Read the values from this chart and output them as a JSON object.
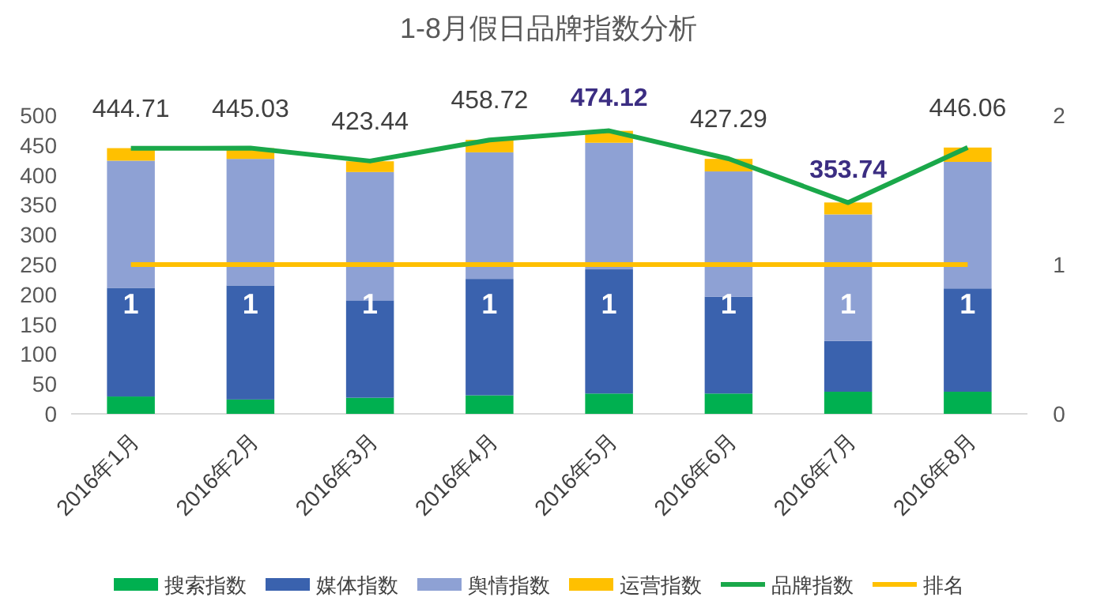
{
  "chart_data": {
    "type": "bar",
    "title": "1-8月假日品牌指数分析",
    "stacked": true,
    "categories": [
      "2016年1月",
      "2016年2月",
      "2016年3月",
      "2016年4月",
      "2016年5月",
      "2016年6月",
      "2016年7月",
      "2016年8月"
    ],
    "ylim": [
      0,
      500
    ],
    "yticks": [
      0,
      50,
      100,
      150,
      200,
      250,
      300,
      350,
      400,
      450,
      500
    ],
    "y2lim": [
      0,
      2
    ],
    "y2ticks": [
      0,
      1,
      2
    ],
    "series": [
      {
        "name": "搜索指数",
        "color": "#00b050",
        "values": [
          29,
          24,
          27,
          31,
          34,
          34,
          37,
          37
        ]
      },
      {
        "name": "媒体指数",
        "color": "#3a62ae",
        "values": [
          182,
          191,
          163,
          195,
          208,
          162,
          85,
          173
        ]
      },
      {
        "name": "舆情指数",
        "color": "#8ea1d4",
        "values": [
          213,
          212,
          215,
          212,
          212,
          210,
          212,
          212
        ]
      },
      {
        "name": "运营指数",
        "color": "#ffc000",
        "values": [
          21,
          18,
          18,
          21,
          20,
          21,
          20,
          24
        ]
      },
      {
        "name": "品牌指数",
        "type": "line",
        "color": "#1aa84a",
        "values": [
          444.71,
          445.03,
          423.44,
          458.72,
          474.12,
          427.29,
          353.74,
          446.06
        ],
        "value_labels": [
          "444.71",
          "445.03",
          "423.44",
          "458.72",
          "474.12",
          "427.29",
          "353.74",
          "446.06"
        ]
      },
      {
        "name": "排名",
        "type": "line",
        "axis": "y2",
        "color": "#ffc000",
        "values": [
          1,
          1,
          1,
          1,
          1,
          1,
          1,
          1
        ],
        "value_labels": [
          "1",
          "1",
          "1",
          "1",
          "1",
          "1",
          "1",
          "1"
        ]
      }
    ],
    "legend": "bottom",
    "grid": false
  }
}
